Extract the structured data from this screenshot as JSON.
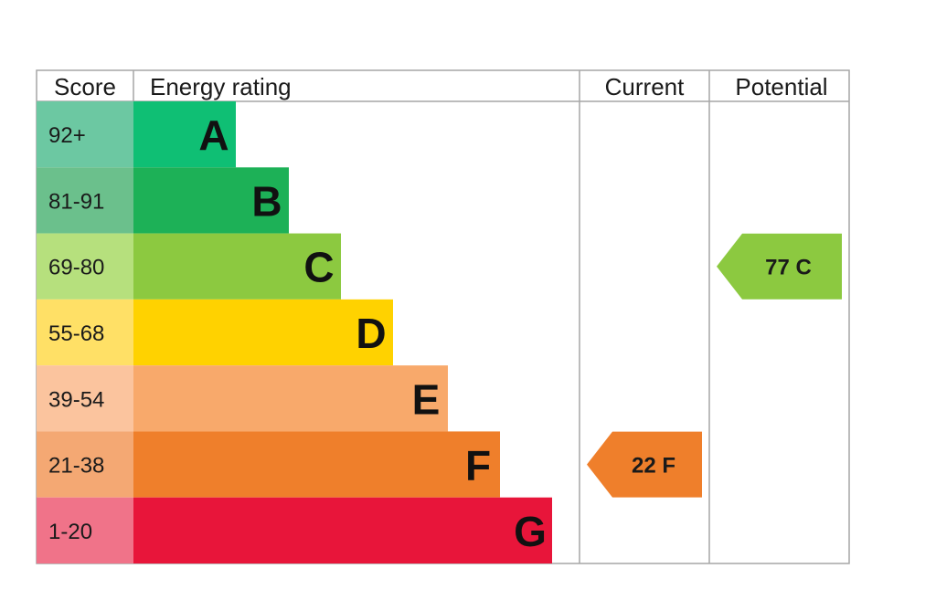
{
  "header": {
    "score": "Score",
    "energy_rating": "Energy rating",
    "current": "Current",
    "potential": "Potential"
  },
  "chart_data": {
    "type": "bar",
    "categories": [
      "A",
      "B",
      "C",
      "D",
      "E",
      "F",
      "G"
    ],
    "ranges": [
      "92+",
      "81-91",
      "69-80",
      "55-68",
      "39-54",
      "21-38",
      "1-20"
    ],
    "band_colors": [
      "#0fbf74",
      "#1db157",
      "#8cc940",
      "#ffd200",
      "#f8a96b",
      "#ef7f2b",
      "#e8153a"
    ],
    "score_colors": [
      "#6cc8a2",
      "#6bc08c",
      "#b6e07d",
      "#ffe066",
      "#fbc49e",
      "#f4a873",
      "#f07389"
    ],
    "current": {
      "score": 22,
      "band": "F",
      "label": "22  F",
      "color": "#ef7f2b"
    },
    "potential": {
      "score": 77,
      "band": "C",
      "label": "77  C",
      "color": "#8cc940"
    }
  }
}
